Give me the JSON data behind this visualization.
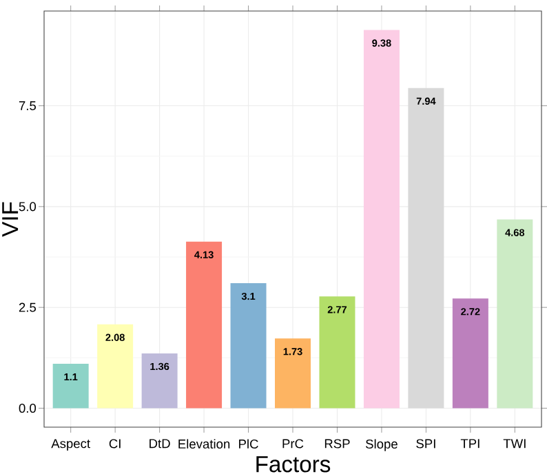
{
  "chart_data": {
    "type": "bar",
    "xlabel": "Factors",
    "ylabel": "VIF",
    "categories": [
      "Aspect",
      "CI",
      "DtD",
      "Elevation",
      "PlC",
      "PrC",
      "RSP",
      "Slope",
      "SPI",
      "TPI",
      "TWI"
    ],
    "values": [
      1.1,
      2.08,
      1.36,
      4.13,
      3.1,
      1.73,
      2.77,
      9.38,
      7.94,
      2.72,
      4.68
    ],
    "colors": [
      "#8dd3c7",
      "#ffffb3",
      "#bebada",
      "#fb8072",
      "#80b1d3",
      "#fdb462",
      "#b3de69",
      "#fccde5",
      "#d9d9d9",
      "#bc80bd",
      "#ccebc5"
    ],
    "ylim": [
      -0.47,
      9.85
    ],
    "yticks": [
      {
        "value": 0,
        "label": "0.0"
      },
      {
        "value": 2.5,
        "label": "2.5"
      },
      {
        "value": 5,
        "label": "5.0"
      },
      {
        "value": 7.5,
        "label": "7.5"
      }
    ],
    "data_labels": true,
    "grid": true
  }
}
